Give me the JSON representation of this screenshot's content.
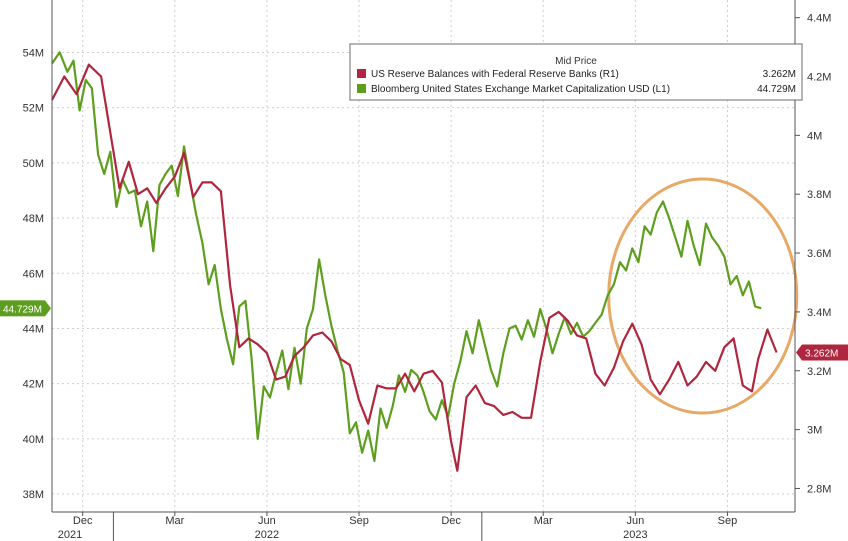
{
  "chart_data": {
    "type": "line",
    "legend": {
      "title": "Mid Price",
      "placement": "top-right",
      "entries": [
        {
          "label": "US Reserve Balances with Federal Reserve Banks  (R1)",
          "last": "3.262M",
          "color": "#b0263e"
        },
        {
          "label": "Bloomberg United States Exchange Market Capitalization USD  (L1)",
          "last": "44.729M",
          "color": "#5e9e1e"
        }
      ]
    },
    "x_ticks": [
      {
        "label": "Dec",
        "t": 1.0
      },
      {
        "label": "Mar",
        "t": 4.0
      },
      {
        "label": "Jun",
        "t": 7.0
      },
      {
        "label": "Sep",
        "t": 10.0
      },
      {
        "label": "Dec",
        "t": 13.0
      },
      {
        "label": "Mar",
        "t": 16.0
      },
      {
        "label": "Jun",
        "t": 19.0
      },
      {
        "label": "Sep",
        "t": 22.0
      }
    ],
    "years": [
      {
        "label": "2021",
        "t": 0.1
      },
      {
        "label": "2022",
        "t": 7.0
      },
      {
        "label": "2023",
        "t": 19.0
      }
    ],
    "year_separators": [
      2.0,
      14.0
    ],
    "x_range": [
      0,
      24.2
    ],
    "grid": true,
    "left_axis": {
      "ticks": [
        {
          "label": "54M",
          "v": 54
        },
        {
          "label": "52M",
          "v": 52
        },
        {
          "label": "50M",
          "v": 50
        },
        {
          "label": "48M",
          "v": 48
        },
        {
          "label": "46M",
          "v": 46
        },
        {
          "label": "44M",
          "v": 44
        },
        {
          "label": "42M",
          "v": 42
        },
        {
          "label": "40M",
          "v": 40
        },
        {
          "label": "38M",
          "v": 38
        }
      ],
      "range": [
        37.35,
        55.9
      ]
    },
    "right_axis": {
      "ticks": [
        {
          "label": "4.4M",
          "v": 4.4
        },
        {
          "label": "4.2M",
          "v": 4.2
        },
        {
          "label": "4M",
          "v": 4.0
        },
        {
          "label": "3.8M",
          "v": 3.8
        },
        {
          "label": "3.6M",
          "v": 3.6
        },
        {
          "label": "3.4M",
          "v": 3.4
        },
        {
          "label": "3.2M",
          "v": 3.2
        },
        {
          "label": "3M",
          "v": 3.0
        },
        {
          "label": "2.8M",
          "v": 2.8
        }
      ],
      "range": [
        2.72,
        4.46
      ]
    },
    "last_value_tags": {
      "left": "44.729M",
      "right": "3.262M"
    },
    "highlight": {
      "type": "ellipse",
      "color": "#e8a968",
      "t_range": [
        18.0,
        24.0
      ]
    },
    "series": [
      {
        "name": "Bloomberg United States Exchange Market Capitalization USD",
        "axis": "left",
        "color": "#5e9e1e",
        "points": [
          [
            0.0,
            53.6
          ],
          [
            0.25,
            54.0
          ],
          [
            0.5,
            53.3
          ],
          [
            0.7,
            53.7
          ],
          [
            0.9,
            51.9
          ],
          [
            1.1,
            53.0
          ],
          [
            1.3,
            52.7
          ],
          [
            1.5,
            50.3
          ],
          [
            1.7,
            49.6
          ],
          [
            1.9,
            50.4
          ],
          [
            2.1,
            48.4
          ],
          [
            2.3,
            49.4
          ],
          [
            2.5,
            48.9
          ],
          [
            2.7,
            49.0
          ],
          [
            2.9,
            47.7
          ],
          [
            3.1,
            48.6
          ],
          [
            3.3,
            46.8
          ],
          [
            3.5,
            49.2
          ],
          [
            3.7,
            49.6
          ],
          [
            3.9,
            49.9
          ],
          [
            4.1,
            48.8
          ],
          [
            4.3,
            50.6
          ],
          [
            4.5,
            49.3
          ],
          [
            4.7,
            48.1
          ],
          [
            4.9,
            47.1
          ],
          [
            5.1,
            45.6
          ],
          [
            5.3,
            46.3
          ],
          [
            5.5,
            44.7
          ],
          [
            5.7,
            43.6
          ],
          [
            5.9,
            42.7
          ],
          [
            6.1,
            44.8
          ],
          [
            6.3,
            45.0
          ],
          [
            6.5,
            42.9
          ],
          [
            6.7,
            40.0
          ],
          [
            6.9,
            41.9
          ],
          [
            7.1,
            41.5
          ],
          [
            7.3,
            42.4
          ],
          [
            7.5,
            43.2
          ],
          [
            7.7,
            41.8
          ],
          [
            7.9,
            43.3
          ],
          [
            8.1,
            42.0
          ],
          [
            8.3,
            44.0
          ],
          [
            8.5,
            44.7
          ],
          [
            8.7,
            46.5
          ],
          [
            8.9,
            45.2
          ],
          [
            9.1,
            44.1
          ],
          [
            9.3,
            43.2
          ],
          [
            9.5,
            42.4
          ],
          [
            9.7,
            40.2
          ],
          [
            9.9,
            40.6
          ],
          [
            10.1,
            39.5
          ],
          [
            10.3,
            40.3
          ],
          [
            10.5,
            39.2
          ],
          [
            10.7,
            41.1
          ],
          [
            10.9,
            40.4
          ],
          [
            11.1,
            41.2
          ],
          [
            11.3,
            42.3
          ],
          [
            11.5,
            41.7
          ],
          [
            11.7,
            42.5
          ],
          [
            11.9,
            42.3
          ],
          [
            12.1,
            41.7
          ],
          [
            12.3,
            41.0
          ],
          [
            12.5,
            40.7
          ],
          [
            12.7,
            41.4
          ],
          [
            12.9,
            40.8
          ],
          [
            13.1,
            42.0
          ],
          [
            13.3,
            42.8
          ],
          [
            13.5,
            43.9
          ],
          [
            13.7,
            43.1
          ],
          [
            13.9,
            44.3
          ],
          [
            14.1,
            43.4
          ],
          [
            14.3,
            42.5
          ],
          [
            14.5,
            41.9
          ],
          [
            14.7,
            43.1
          ],
          [
            14.9,
            44.0
          ],
          [
            15.1,
            44.1
          ],
          [
            15.3,
            43.6
          ],
          [
            15.5,
            44.3
          ],
          [
            15.7,
            43.7
          ],
          [
            15.9,
            44.7
          ],
          [
            16.1,
            44.0
          ],
          [
            16.3,
            43.1
          ],
          [
            16.5,
            43.8
          ],
          [
            16.7,
            44.4
          ],
          [
            16.9,
            43.8
          ],
          [
            17.1,
            44.2
          ],
          [
            17.3,
            43.7
          ],
          [
            17.5,
            43.9
          ],
          [
            17.7,
            44.2
          ],
          [
            17.9,
            44.5
          ],
          [
            18.1,
            45.2
          ],
          [
            18.3,
            45.6
          ],
          [
            18.5,
            46.4
          ],
          [
            18.7,
            46.1
          ],
          [
            18.9,
            46.9
          ],
          [
            19.1,
            46.4
          ],
          [
            19.3,
            47.7
          ],
          [
            19.5,
            47.4
          ],
          [
            19.7,
            48.2
          ],
          [
            19.9,
            48.6
          ],
          [
            20.1,
            48.0
          ],
          [
            20.3,
            47.3
          ],
          [
            20.5,
            46.6
          ],
          [
            20.7,
            47.9
          ],
          [
            20.9,
            47.0
          ],
          [
            21.1,
            46.3
          ],
          [
            21.3,
            47.8
          ],
          [
            21.5,
            47.3
          ],
          [
            21.7,
            47.0
          ],
          [
            21.9,
            46.6
          ],
          [
            22.1,
            45.6
          ],
          [
            22.3,
            45.9
          ],
          [
            22.5,
            45.2
          ],
          [
            22.7,
            45.7
          ],
          [
            22.9,
            44.8
          ],
          [
            23.1,
            44.729
          ]
        ]
      },
      {
        "name": "US Reserve Balances with Federal Reserve Banks",
        "axis": "right",
        "color": "#b0263e",
        "points": [
          [
            0.0,
            4.12
          ],
          [
            0.4,
            4.2
          ],
          [
            0.8,
            4.14
          ],
          [
            1.2,
            4.24
          ],
          [
            1.6,
            4.2
          ],
          [
            1.9,
            4.01
          ],
          [
            2.2,
            3.82
          ],
          [
            2.5,
            3.91
          ],
          [
            2.8,
            3.8
          ],
          [
            3.1,
            3.82
          ],
          [
            3.4,
            3.77
          ],
          [
            3.7,
            3.82
          ],
          [
            4.0,
            3.86
          ],
          [
            4.3,
            3.94
          ],
          [
            4.6,
            3.79
          ],
          [
            4.9,
            3.84
          ],
          [
            5.2,
            3.84
          ],
          [
            5.5,
            3.81
          ],
          [
            5.8,
            3.49
          ],
          [
            6.1,
            3.28
          ],
          [
            6.4,
            3.31
          ],
          [
            6.7,
            3.29
          ],
          [
            7.0,
            3.26
          ],
          [
            7.3,
            3.17
          ],
          [
            7.6,
            3.18
          ],
          [
            7.9,
            3.25
          ],
          [
            8.2,
            3.28
          ],
          [
            8.5,
            3.32
          ],
          [
            8.8,
            3.33
          ],
          [
            9.1,
            3.3
          ],
          [
            9.4,
            3.24
          ],
          [
            9.7,
            3.22
          ],
          [
            10.0,
            3.1
          ],
          [
            10.3,
            3.02
          ],
          [
            10.6,
            3.15
          ],
          [
            10.9,
            3.14
          ],
          [
            11.2,
            3.14
          ],
          [
            11.5,
            3.19
          ],
          [
            11.8,
            3.13
          ],
          [
            12.1,
            3.19
          ],
          [
            12.4,
            3.2
          ],
          [
            12.7,
            3.16
          ],
          [
            13.0,
            2.96
          ],
          [
            13.2,
            2.86
          ],
          [
            13.5,
            3.11
          ],
          [
            13.8,
            3.15
          ],
          [
            14.1,
            3.09
          ],
          [
            14.4,
            3.08
          ],
          [
            14.7,
            3.05
          ],
          [
            15.0,
            3.06
          ],
          [
            15.3,
            3.04
          ],
          [
            15.6,
            3.04
          ],
          [
            15.9,
            3.23
          ],
          [
            16.2,
            3.38
          ],
          [
            16.5,
            3.4
          ],
          [
            16.8,
            3.37
          ],
          [
            17.1,
            3.32
          ],
          [
            17.4,
            3.31
          ],
          [
            17.7,
            3.19
          ],
          [
            18.0,
            3.15
          ],
          [
            18.3,
            3.21
          ],
          [
            18.6,
            3.3
          ],
          [
            18.9,
            3.36
          ],
          [
            19.2,
            3.29
          ],
          [
            19.5,
            3.17
          ],
          [
            19.8,
            3.12
          ],
          [
            20.1,
            3.17
          ],
          [
            20.4,
            3.23
          ],
          [
            20.7,
            3.15
          ],
          [
            21.0,
            3.18
          ],
          [
            21.3,
            3.23
          ],
          [
            21.6,
            3.2
          ],
          [
            21.9,
            3.28
          ],
          [
            22.2,
            3.31
          ],
          [
            22.5,
            3.15
          ],
          [
            22.8,
            3.13
          ],
          [
            23.0,
            3.24
          ],
          [
            23.3,
            3.34
          ],
          [
            23.6,
            3.262
          ]
        ]
      }
    ]
  }
}
